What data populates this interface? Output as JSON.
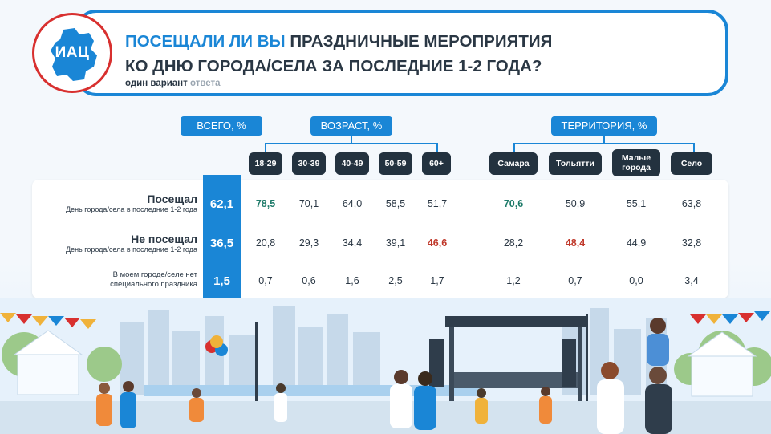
{
  "header": {
    "logo_text": "ИАЦ",
    "title_accent": "ПОСЕЩАЛИ ЛИ ВЫ",
    "title_rest_line1": "ПРАЗДНИЧНЫЕ МЕРОПРИЯТИЯ",
    "title_line2": "КО  ДНЮ ГОРОДА/СЕЛА ЗА ПОСЛЕДНИЕ 1-2 ГОДА?",
    "subtitle_bold": "один вариант",
    "subtitle_grey": "ответа"
  },
  "groups": {
    "total": "ВСЕГО, %",
    "age": "ВОЗРАСТ, %",
    "territory": "ТЕРРИТОРИЯ, %"
  },
  "columns": {
    "age": [
      "18-29",
      "30-39",
      "40-49",
      "50-59",
      "60+"
    ],
    "territory": [
      "Самара",
      "Тольятти",
      "Малые города",
      "Село"
    ]
  },
  "rows": [
    {
      "label": "Посещал",
      "sub": "День города/села в последние 1-2 года",
      "total": "62,1",
      "age": [
        "78,5",
        "70,1",
        "64,0",
        "58,5",
        "51,7"
      ],
      "territory": [
        "70,6",
        "50,9",
        "55,1",
        "63,8"
      ]
    },
    {
      "label": "Не посещал",
      "sub": "День города/села в последние 1-2 года",
      "total": "36,5",
      "age": [
        "20,8",
        "29,3",
        "34,4",
        "39,1",
        "46,6"
      ],
      "territory": [
        "28,2",
        "48,4",
        "44,9",
        "32,8"
      ]
    },
    {
      "label_line1": "В моем городе/селе нет",
      "label_line2": "специального праздника",
      "total": "1,5",
      "age": [
        "0,7",
        "0,6",
        "1,6",
        "2,5",
        "1,7"
      ],
      "territory": [
        "1,2",
        "0,7",
        "0,0",
        "3,4"
      ]
    }
  ],
  "colors": {
    "accent": "#1a86d6",
    "highlight_green": "#1f7b6a",
    "highlight_red": "#c0392b",
    "dark": "#23323f"
  }
}
